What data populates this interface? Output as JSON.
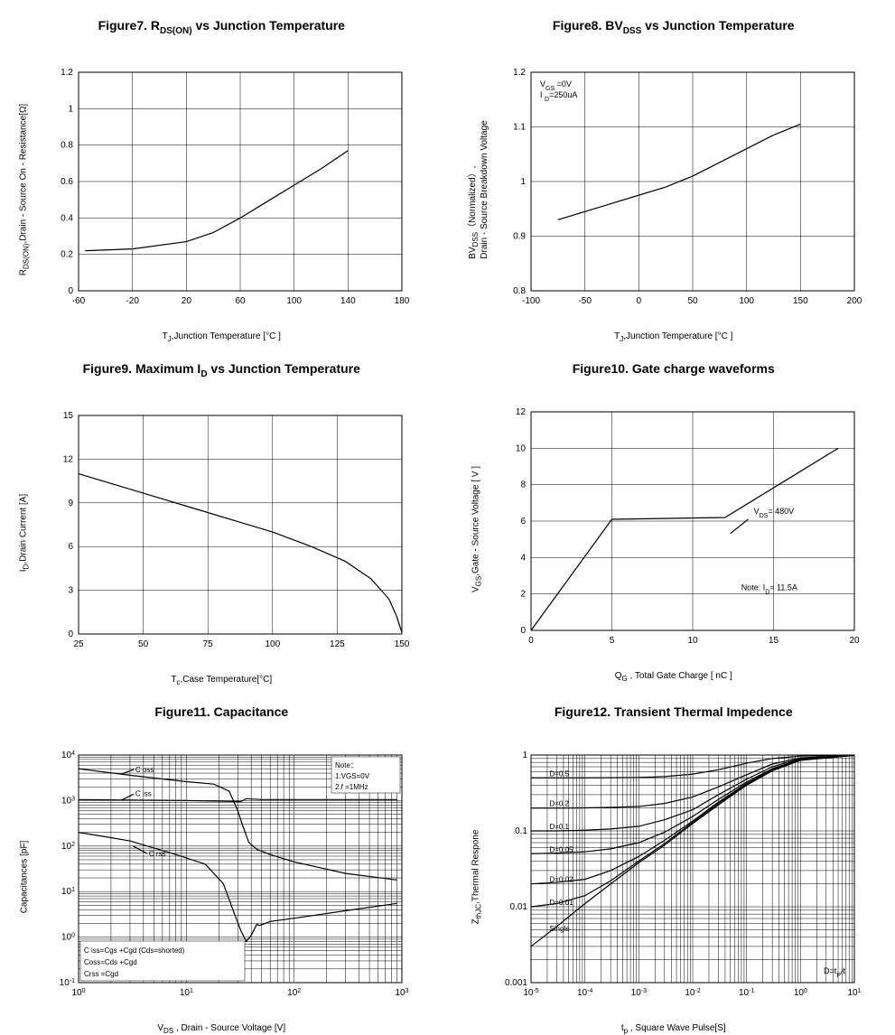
{
  "figure7": {
    "type": "line",
    "title_html": "Figure7. R<sub>DS(ON)</sub> vs Junction Temperature",
    "xlabel_html": "T<sub>J</sub>,Junction Temperature [°C ]",
    "ylabel_html": "R<sub>DS(ON)</sub>,Drain - Source On - Resistance[Ω]",
    "xlim": [
      -60,
      180
    ],
    "ylim": [
      0,
      1.2
    ],
    "xtick_step": 40,
    "ytick_step": 0.2,
    "background_color": "#ffffff",
    "grid_color": "#000000",
    "line_color": "#000000",
    "x": [
      -55,
      -20,
      20,
      40,
      60,
      80,
      100,
      120,
      140
    ],
    "y": [
      0.22,
      0.23,
      0.27,
      0.32,
      0.4,
      0.49,
      0.58,
      0.67,
      0.77
    ]
  },
  "figure8": {
    "type": "line",
    "title_html": "Figure8. BV<sub>DSS</sub> vs Junction Temperature",
    "xlabel_html": "T<sub>J</sub>,Junction Temperature [°C ]",
    "ylabel_html": "BV<sub>DSS</sub>（Normalized）,<br>Drain - Source Breakdown Voltage",
    "xlim": [
      -100,
      200
    ],
    "ylim": [
      0.8,
      1.2
    ],
    "xtick_step": 50,
    "ytick_step": 0.1,
    "background_color": "#ffffff",
    "grid_color": "#000000",
    "line_color": "#000000",
    "note1": "V",
    "note1_sub": "GS",
    "note1_rest": " =0V",
    "note2": "I ",
    "note2_sub": "D",
    "note2_rest": "=250uA",
    "x": [
      -75,
      -50,
      -25,
      0,
      25,
      50,
      75,
      100,
      125,
      150
    ],
    "y": [
      0.93,
      0.945,
      0.96,
      0.975,
      0.99,
      1.01,
      1.035,
      1.06,
      1.085,
      1.105
    ]
  },
  "figure9": {
    "type": "line",
    "title_html": "Figure9. Maximum I<sub>D</sub> vs Junction Temperature",
    "xlabel_html": "T<sub>c</sub>,Case Temperature[°C]",
    "ylabel_html": "I<sub>D</sub>,Drain Current [A]",
    "xlim": [
      25,
      150
    ],
    "ylim": [
      0,
      15
    ],
    "xtick_step": 25,
    "ytick_step": 3,
    "background_color": "#ffffff",
    "grid_color": "#000000",
    "line_color": "#000000",
    "x": [
      25,
      40,
      55,
      70,
      85,
      100,
      115,
      128,
      138,
      145,
      148,
      150
    ],
    "y": [
      11.0,
      10.2,
      9.4,
      8.6,
      7.8,
      7.0,
      6.0,
      5.0,
      3.8,
      2.4,
      1.2,
      0.1
    ]
  },
  "figure10": {
    "type": "line",
    "title_html": "Figure10. Gate charge waveforms",
    "xlabel_html": "Q<sub>G</sub> , Total Gate Charge [ nC ]",
    "ylabel_html": "V<sub>GS</sub>,Gate - Source Voltage [ V ]",
    "xlim": [
      0,
      20
    ],
    "ylim": [
      0,
      12
    ],
    "xtick_step": 5,
    "ytick_step": 2,
    "background_color": "#ffffff",
    "grid_color": "#000000",
    "line_color": "#000000",
    "annotation1_html": "V<sub>DS</sub>= 480V",
    "annotation2_html": "Note: I<sub>D</sub>= 11.5A",
    "x": [
      0,
      5,
      12,
      19
    ],
    "y": [
      0,
      6.1,
      6.2,
      10.0
    ]
  },
  "figure11": {
    "type": "line-loglog",
    "title_html": "Figure11. Capacitance",
    "xlabel_html": "V<sub>DS</sub> , Drain - Source Voltage [V]",
    "ylabel_html": "Capacitances [pF]",
    "xlim": [
      1,
      1000
    ],
    "ylim": [
      0.1,
      10000
    ],
    "background_color": "#ffffff",
    "grid_color": "#000000",
    "line_color": "#000000",
    "note_lines": [
      "Note：",
      "1.VGS=0V",
      "2.f =1MHz"
    ],
    "legend_lines": [
      "C iss=Cgs +Cgd  (Cds=shorted)",
      "Coss=Cds +Cgd",
      "Crss =Cgd"
    ],
    "series_labels": {
      "ciss": "C iss",
      "coss": "C oss",
      "crss": "C rss"
    },
    "series": {
      "coss": {
        "x": [
          1,
          3,
          10,
          18,
          25,
          30,
          33,
          38,
          45,
          60,
          100,
          300,
          900
        ],
        "y": [
          5000,
          3600,
          2600,
          2300,
          1600,
          600,
          300,
          120,
          85,
          65,
          45,
          25,
          18
        ]
      },
      "ciss": {
        "x": [
          1,
          10,
          32,
          36,
          50,
          100,
          900
        ],
        "y": [
          1050,
          1000,
          950,
          1100,
          1050,
          1050,
          1050
        ]
      },
      "crss": {
        "x": [
          1,
          3,
          8,
          15,
          22,
          28,
          32,
          36,
          40,
          45,
          48,
          60,
          100,
          300,
          900
        ],
        "y": [
          200,
          130,
          65,
          40,
          15,
          3.2,
          1.4,
          0.8,
          1.1,
          1.9,
          1.8,
          2.2,
          2.6,
          3.8,
          5.5
        ]
      }
    }
  },
  "figure12": {
    "type": "line-loglog",
    "title_html": "Figure12. Transient Thermal Impedence",
    "xlabel_html": "t<sub>p</sub> ,   Square Wave Pulse[S]",
    "ylabel_html": "Z<sub>thJC</sub>,Thermal Respone",
    "xlim": [
      1e-05,
      10
    ],
    "ylim": [
      0.001,
      1
    ],
    "background_color": "#ffffff",
    "grid_color": "#000000",
    "line_color": "#000000",
    "d_labels": [
      "D=0.5",
      "D=0.2",
      "D=0.1",
      "D=0.05",
      "D=0.02",
      "D=0.01",
      "Single"
    ],
    "d_note": "D=tP/t",
    "series": {
      "single": {
        "x": [
          1e-05,
          3e-05,
          0.0001,
          0.0003,
          0.001,
          0.003,
          0.01,
          0.03,
          0.1,
          0.3,
          1,
          10
        ],
        "y": [
          0.003,
          0.0055,
          0.011,
          0.02,
          0.038,
          0.065,
          0.125,
          0.22,
          0.4,
          0.62,
          0.85,
          0.99
        ]
      },
      "d001": {
        "x": [
          1e-05,
          3e-05,
          0.0001,
          0.0003,
          0.001,
          0.003,
          0.01,
          0.03,
          0.1,
          0.3,
          1,
          10
        ],
        "y": [
          0.01,
          0.011,
          0.014,
          0.022,
          0.04,
          0.068,
          0.13,
          0.23,
          0.41,
          0.63,
          0.86,
          0.99
        ]
      },
      "d002": {
        "x": [
          1e-05,
          3e-05,
          0.0001,
          0.0003,
          0.001,
          0.003,
          0.01,
          0.03,
          0.1,
          0.3,
          1,
          10
        ],
        "y": [
          0.02,
          0.021,
          0.023,
          0.03,
          0.046,
          0.075,
          0.135,
          0.24,
          0.42,
          0.64,
          0.87,
          0.99
        ]
      },
      "d005": {
        "x": [
          1e-05,
          3e-05,
          0.0001,
          0.0003,
          0.001,
          0.003,
          0.01,
          0.03,
          0.1,
          0.3,
          1,
          10
        ],
        "y": [
          0.05,
          0.051,
          0.053,
          0.058,
          0.07,
          0.096,
          0.155,
          0.26,
          0.44,
          0.66,
          0.88,
          0.99
        ]
      },
      "d01": {
        "x": [
          1e-05,
          3e-05,
          0.0001,
          0.0003,
          0.001,
          0.003,
          0.01,
          0.03,
          0.1,
          0.3,
          1,
          10
        ],
        "y": [
          0.1,
          0.1,
          0.102,
          0.106,
          0.115,
          0.14,
          0.19,
          0.3,
          0.48,
          0.7,
          0.9,
          0.99
        ]
      },
      "d02": {
        "x": [
          1e-05,
          3e-05,
          0.0001,
          0.0003,
          0.001,
          0.003,
          0.01,
          0.03,
          0.1,
          0.3,
          1,
          10
        ],
        "y": [
          0.2,
          0.2,
          0.201,
          0.204,
          0.21,
          0.23,
          0.28,
          0.38,
          0.55,
          0.76,
          0.92,
          0.99
        ]
      },
      "d05": {
        "x": [
          1e-05,
          3e-05,
          0.0001,
          0.0003,
          0.001,
          0.003,
          0.01,
          0.03,
          0.1,
          0.3,
          1,
          10
        ],
        "y": [
          0.5,
          0.5,
          0.5,
          0.502,
          0.506,
          0.52,
          0.56,
          0.64,
          0.78,
          0.9,
          0.97,
          0.99
        ]
      }
    }
  }
}
